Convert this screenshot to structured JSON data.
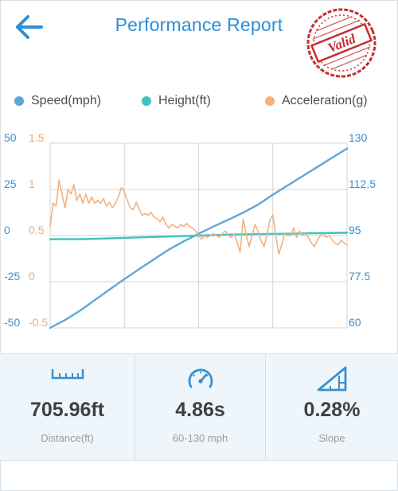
{
  "header": {
    "title": "Performance Report",
    "back_icon": "back-arrow-icon",
    "stamp_text": "Valid"
  },
  "colors": {
    "speed": "#5ba8dc",
    "height": "#3cc2c4",
    "acceleration": "#f1b27e",
    "title": "#2d8fd6"
  },
  "legend": [
    {
      "label": "Speed(mph)",
      "color": "#5ba8dc"
    },
    {
      "label": "Height(ft)",
      "color": "#3cc2c4"
    },
    {
      "label": "Acceleration(g)",
      "color": "#f1b27e"
    }
  ],
  "chart_data": {
    "type": "line",
    "grid": true,
    "axes": {
      "height_ft": {
        "ticks": [
          "50",
          "25",
          "0",
          "-25",
          "-50"
        ],
        "range": [
          -50,
          50
        ]
      },
      "acceleration_g": {
        "ticks": [
          "1.5",
          "1",
          "0.5",
          "0",
          "-0.5"
        ],
        "range": [
          -0.5,
          1.5
        ]
      },
      "speed_mph": {
        "ticks": [
          "130",
          "112.5",
          "95",
          "77.5",
          "60"
        ],
        "range": [
          60,
          130
        ]
      }
    },
    "x_range": [
      0,
      100
    ],
    "series": [
      {
        "name": "Speed(mph)",
        "axis": "speed_mph",
        "points": [
          [
            0,
            60
          ],
          [
            5,
            63
          ],
          [
            10,
            66.5
          ],
          [
            15,
            70.5
          ],
          [
            20,
            74.5
          ],
          [
            25,
            78.5
          ],
          [
            30,
            82.3
          ],
          [
            35,
            86
          ],
          [
            40,
            89.7
          ],
          [
            45,
            92.8
          ],
          [
            50,
            95.7
          ],
          [
            55,
            98.4
          ],
          [
            60,
            101
          ],
          [
            65,
            103.7
          ],
          [
            70,
            106.7
          ],
          [
            75,
            110.5
          ],
          [
            80,
            114
          ],
          [
            85,
            117.5
          ],
          [
            90,
            121
          ],
          [
            95,
            124.5
          ],
          [
            100,
            128
          ]
        ]
      },
      {
        "name": "Height(ft)",
        "axis": "height_ft",
        "points": [
          [
            0,
            -2
          ],
          [
            10,
            -2
          ],
          [
            20,
            -1.5
          ],
          [
            30,
            -1
          ],
          [
            40,
            -0.5
          ],
          [
            50,
            0
          ],
          [
            60,
            0.5
          ],
          [
            70,
            0.8
          ],
          [
            80,
            1
          ],
          [
            90,
            1.3
          ],
          [
            100,
            1.5
          ]
        ]
      },
      {
        "name": "Acceleration(g)",
        "axis": "acceleration_g",
        "points": [
          [
            0,
            0.6
          ],
          [
            1,
            0.85
          ],
          [
            2,
            0.82
          ],
          [
            3,
            1.1
          ],
          [
            4,
            0.95
          ],
          [
            5,
            0.8
          ],
          [
            6,
            1.0
          ],
          [
            7,
            0.95
          ],
          [
            8,
            1.05
          ],
          [
            9,
            0.88
          ],
          [
            10,
            0.95
          ],
          [
            11,
            0.85
          ],
          [
            12,
            0.95
          ],
          [
            13,
            0.85
          ],
          [
            14,
            0.92
          ],
          [
            15,
            0.85
          ],
          [
            16,
            0.88
          ],
          [
            17,
            0.85
          ],
          [
            18,
            0.9
          ],
          [
            19,
            0.82
          ],
          [
            20,
            0.86
          ],
          [
            21,
            0.8
          ],
          [
            22,
            0.85
          ],
          [
            23,
            0.92
          ],
          [
            24,
            1.02
          ],
          [
            25,
            0.97
          ],
          [
            26,
            0.88
          ],
          [
            27,
            0.8
          ],
          [
            28,
            0.78
          ],
          [
            29,
            0.86
          ],
          [
            30,
            0.78
          ],
          [
            31,
            0.72
          ],
          [
            32,
            0.74
          ],
          [
            33,
            0.72
          ],
          [
            34,
            0.75
          ],
          [
            35,
            0.7
          ],
          [
            36,
            0.68
          ],
          [
            37,
            0.65
          ],
          [
            38,
            0.7
          ],
          [
            39,
            0.62
          ],
          [
            40,
            0.58
          ],
          [
            41,
            0.62
          ],
          [
            42,
            0.6
          ],
          [
            43,
            0.58
          ],
          [
            44,
            0.62
          ],
          [
            45,
            0.6
          ],
          [
            46,
            0.63
          ],
          [
            47,
            0.6
          ],
          [
            48,
            0.58
          ],
          [
            49,
            0.55
          ],
          [
            50,
            0.5
          ],
          [
            51,
            0.46
          ],
          [
            52,
            0.5
          ],
          [
            53,
            0.48
          ],
          [
            54,
            0.5
          ],
          [
            55,
            0.52
          ],
          [
            56,
            0.5
          ],
          [
            57,
            0.48
          ],
          [
            58,
            0.52
          ],
          [
            59,
            0.55
          ],
          [
            60,
            0.5
          ],
          [
            61,
            0.48
          ],
          [
            62,
            0.52
          ],
          [
            63,
            0.42
          ],
          [
            64,
            0.32
          ],
          [
            65,
            0.68
          ],
          [
            66,
            0.52
          ],
          [
            67,
            0.38
          ],
          [
            68,
            0.5
          ],
          [
            69,
            0.62
          ],
          [
            70,
            0.55
          ],
          [
            71,
            0.45
          ],
          [
            72,
            0.38
          ],
          [
            73,
            0.5
          ],
          [
            74,
            0.67
          ],
          [
            75,
            0.72
          ],
          [
            76,
            0.5
          ],
          [
            77,
            0.3
          ],
          [
            78,
            0.4
          ],
          [
            79,
            0.52
          ],
          [
            80,
            0.5
          ],
          [
            81,
            0.5
          ],
          [
            82,
            0.58
          ],
          [
            83,
            0.48
          ],
          [
            84,
            0.55
          ],
          [
            85,
            0.5
          ],
          [
            86,
            0.52
          ],
          [
            87,
            0.48
          ],
          [
            88,
            0.42
          ],
          [
            89,
            0.38
          ],
          [
            90,
            0.45
          ],
          [
            91,
            0.5
          ],
          [
            92,
            0.52
          ],
          [
            93,
            0.48
          ],
          [
            94,
            0.5
          ],
          [
            95,
            0.45
          ],
          [
            96,
            0.42
          ],
          [
            97,
            0.4
          ],
          [
            98,
            0.45
          ],
          [
            99,
            0.42
          ],
          [
            100,
            0.4
          ]
        ]
      }
    ]
  },
  "stats": [
    {
      "icon": "ruler-icon",
      "value": "705.96ft",
      "label": "Distance(ft)"
    },
    {
      "icon": "speedometer-icon",
      "value": "4.86s",
      "label": "60-130 mph"
    },
    {
      "icon": "slope-icon",
      "value": "0.28%",
      "label": "Slope"
    }
  ]
}
